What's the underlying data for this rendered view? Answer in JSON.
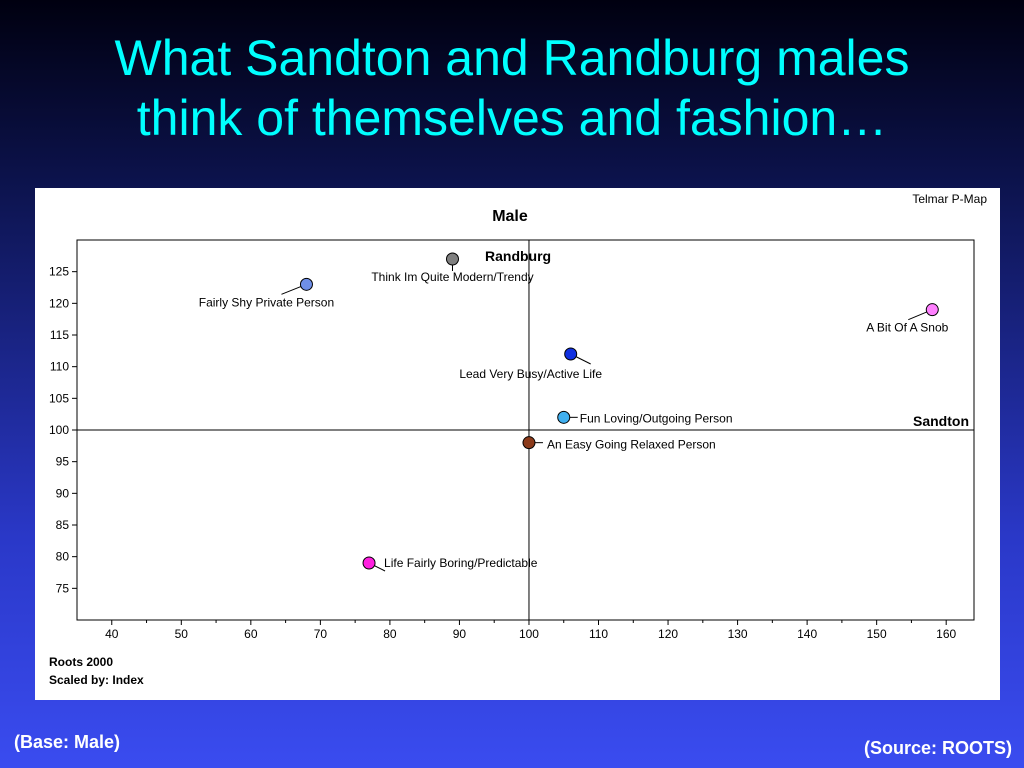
{
  "slide": {
    "title_line1": "What Sandton and Randburg males",
    "title_line2": "think of themselves and fashion…",
    "base_note": "(Base: Male)",
    "source_note": "(Source: ROOTS)"
  },
  "chart_data": {
    "type": "scatter",
    "title": "Male",
    "software_label": "Telmar P-Map",
    "footnote_line1": "Roots 2000",
    "footnote_line2": "Scaled by: Index",
    "x_axis_name": "Sandton",
    "y_axis_name": "Randburg",
    "xlim": [
      35,
      164
    ],
    "ylim": [
      70,
      130
    ],
    "x_ticks": [
      40,
      50,
      60,
      70,
      80,
      90,
      100,
      110,
      120,
      130,
      140,
      150,
      160
    ],
    "y_ticks": [
      75,
      80,
      85,
      90,
      95,
      100,
      105,
      110,
      115,
      120,
      125
    ],
    "reference_x": 100,
    "reference_y": 100,
    "points": [
      {
        "label": "Think Im Quite Modern/Trendy",
        "x": 89,
        "y": 127,
        "color": "#808080"
      },
      {
        "label": "Fairly Shy Private Person",
        "x": 68,
        "y": 123,
        "color": "#6f8fe8"
      },
      {
        "label": "A Bit Of A Snob",
        "x": 158,
        "y": 119,
        "color": "#ff80ff"
      },
      {
        "label": "Lead Very Busy/Active Life",
        "x": 106,
        "y": 112,
        "color": "#1030e0"
      },
      {
        "label": "Fun Loving/Outgoing Person",
        "x": 105,
        "y": 102,
        "color": "#40b0f0"
      },
      {
        "label": "An Easy Going Relaxed Person",
        "x": 100,
        "y": 98,
        "color": "#8b3a1a"
      },
      {
        "label": "Life Fairly Boring/Predictable",
        "x": 77,
        "y": 79,
        "color": "#ff20e0"
      }
    ]
  }
}
